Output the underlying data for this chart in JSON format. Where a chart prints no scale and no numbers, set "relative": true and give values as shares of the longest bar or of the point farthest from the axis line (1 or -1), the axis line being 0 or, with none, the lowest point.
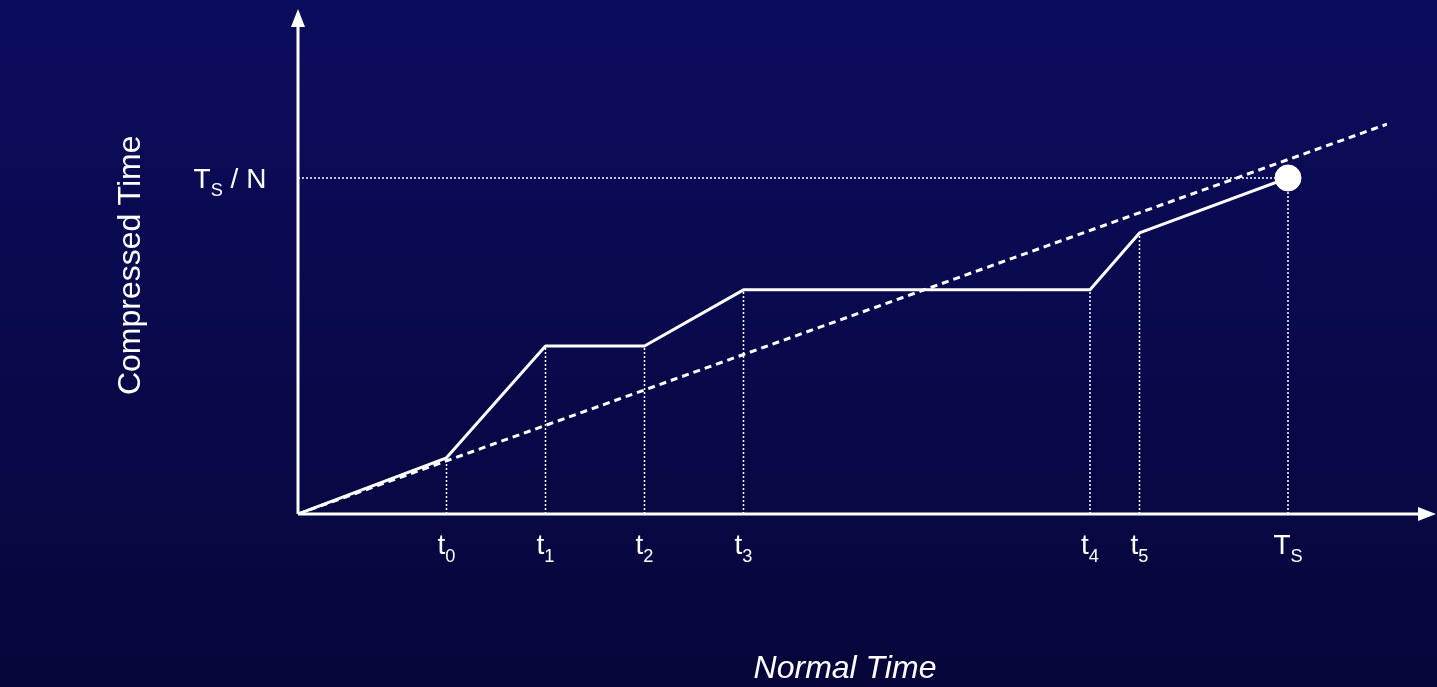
{
  "chart_data": {
    "type": "line",
    "relative": true,
    "xlabel": "Normal Time",
    "ylabel": "Compressed Time",
    "categories": [
      null,
      null,
      null,
      "t$_{0}$",
      null,
      "t$_{1}$",
      null,
      "t$_{2}$",
      null,
      "t$_{3}$",
      null,
      null,
      null,
      null,
      null,
      null,
      "t$_{4}$",
      "t$_{5}$",
      null,
      null,
      "T$_{S}$",
      null,
      null
    ],
    "legend": false,
    "grid": false,
    "tick_labels": "x",
    "marker": "none",
    "series": [
      {
        "type": "line",
        "color": "#ffffff",
        "line_style": "solid",
        "values": [
          0,
          null,
          null,
          0.144,
          null,
          0.431,
          null,
          0.431,
          null,
          0.575,
          null,
          null,
          null,
          null,
          null,
          null,
          0.575,
          0.721,
          null,
          null,
          0.862,
          null,
          null
        ]
      },
      {
        "type": "line",
        "color": "#ffffff",
        "line_style": "dashed",
        "values": [
          0,
          null,
          null,
          null,
          null,
          null,
          null,
          null,
          null,
          null,
          null,
          null,
          null,
          null,
          null,
          null,
          null,
          null,
          null,
          null,
          null,
          null,
          1
        ]
      },
      {
        "type": "scatter",
        "color": "#ffffff",
        "marker": "circle",
        "x": [
          "T$_{S}$"
        ],
        "values": [
          0.862
        ]
      }
    ],
    "ref_lines": [
      {
        "axis": "x",
        "value": "t$_{0}$",
        "line_style": "dotted",
        "color": "#ffffff"
      },
      {
        "axis": "x",
        "value": "t$_{1}$",
        "line_style": "dotted",
        "color": "#ffffff"
      },
      {
        "axis": "x",
        "value": "t$_{2}$",
        "line_style": "dotted",
        "color": "#ffffff"
      },
      {
        "axis": "x",
        "value": "t$_{3}$",
        "line_style": "dotted",
        "color": "#ffffff"
      },
      {
        "axis": "x",
        "value": "t$_{4}$",
        "line_style": "dotted",
        "color": "#ffffff"
      },
      {
        "axis": "x",
        "value": "t$_{5}$",
        "line_style": "dotted",
        "color": "#ffffff"
      },
      {
        "axis": "x",
        "value": "T$_{S}$",
        "line_style": "dotted",
        "color": "#ffffff"
      },
      {
        "axis": "y",
        "value": 0.862,
        "label": "T$_{S}$ / N",
        "line_style": "dotted",
        "color": "#ffffff"
      }
    ]
  }
}
